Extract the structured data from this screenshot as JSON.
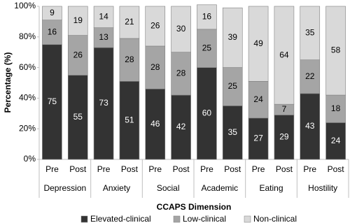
{
  "chart_data": {
    "type": "stacked_bar",
    "categories": [
      "Pre",
      "Post",
      "Pre",
      "Post",
      "Pre",
      "Post",
      "Pre",
      "Post",
      "Pre",
      "Post",
      "Pre",
      "Post"
    ],
    "groups": [
      "Depression",
      "Anxiety",
      "Social",
      "Academic",
      "Eating",
      "Hostility"
    ],
    "series": [
      {
        "name": "Elevated-clinical",
        "color": "#333333",
        "values": [
          75,
          55,
          73,
          51,
          46,
          42,
          60,
          35,
          27,
          29,
          43,
          24
        ]
      },
      {
        "name": "Low-clinical",
        "color": "#a5a5a5",
        "values": [
          16,
          26,
          13,
          28,
          28,
          28,
          25,
          25,
          24,
          7,
          22,
          18
        ]
      },
      {
        "name": "Non-clinical",
        "color": "#d9d9d9",
        "values": [
          9,
          19,
          14,
          21,
          26,
          30,
          16,
          39,
          49,
          64,
          35,
          58
        ]
      }
    ],
    "ylabel": "Percentage (%)",
    "xlabel": "CCAPS Dimension",
    "ylim": [
      0,
      100
    ],
    "yticks": [
      {
        "value": 0,
        "label": "0%"
      },
      {
        "value": 20,
        "label": "20%"
      },
      {
        "value": 40,
        "label": "40%"
      },
      {
        "value": 60,
        "label": "60%"
      },
      {
        "value": 80,
        "label": "80%"
      },
      {
        "value": 100,
        "label": "100%"
      }
    ],
    "legend": "bottom"
  }
}
